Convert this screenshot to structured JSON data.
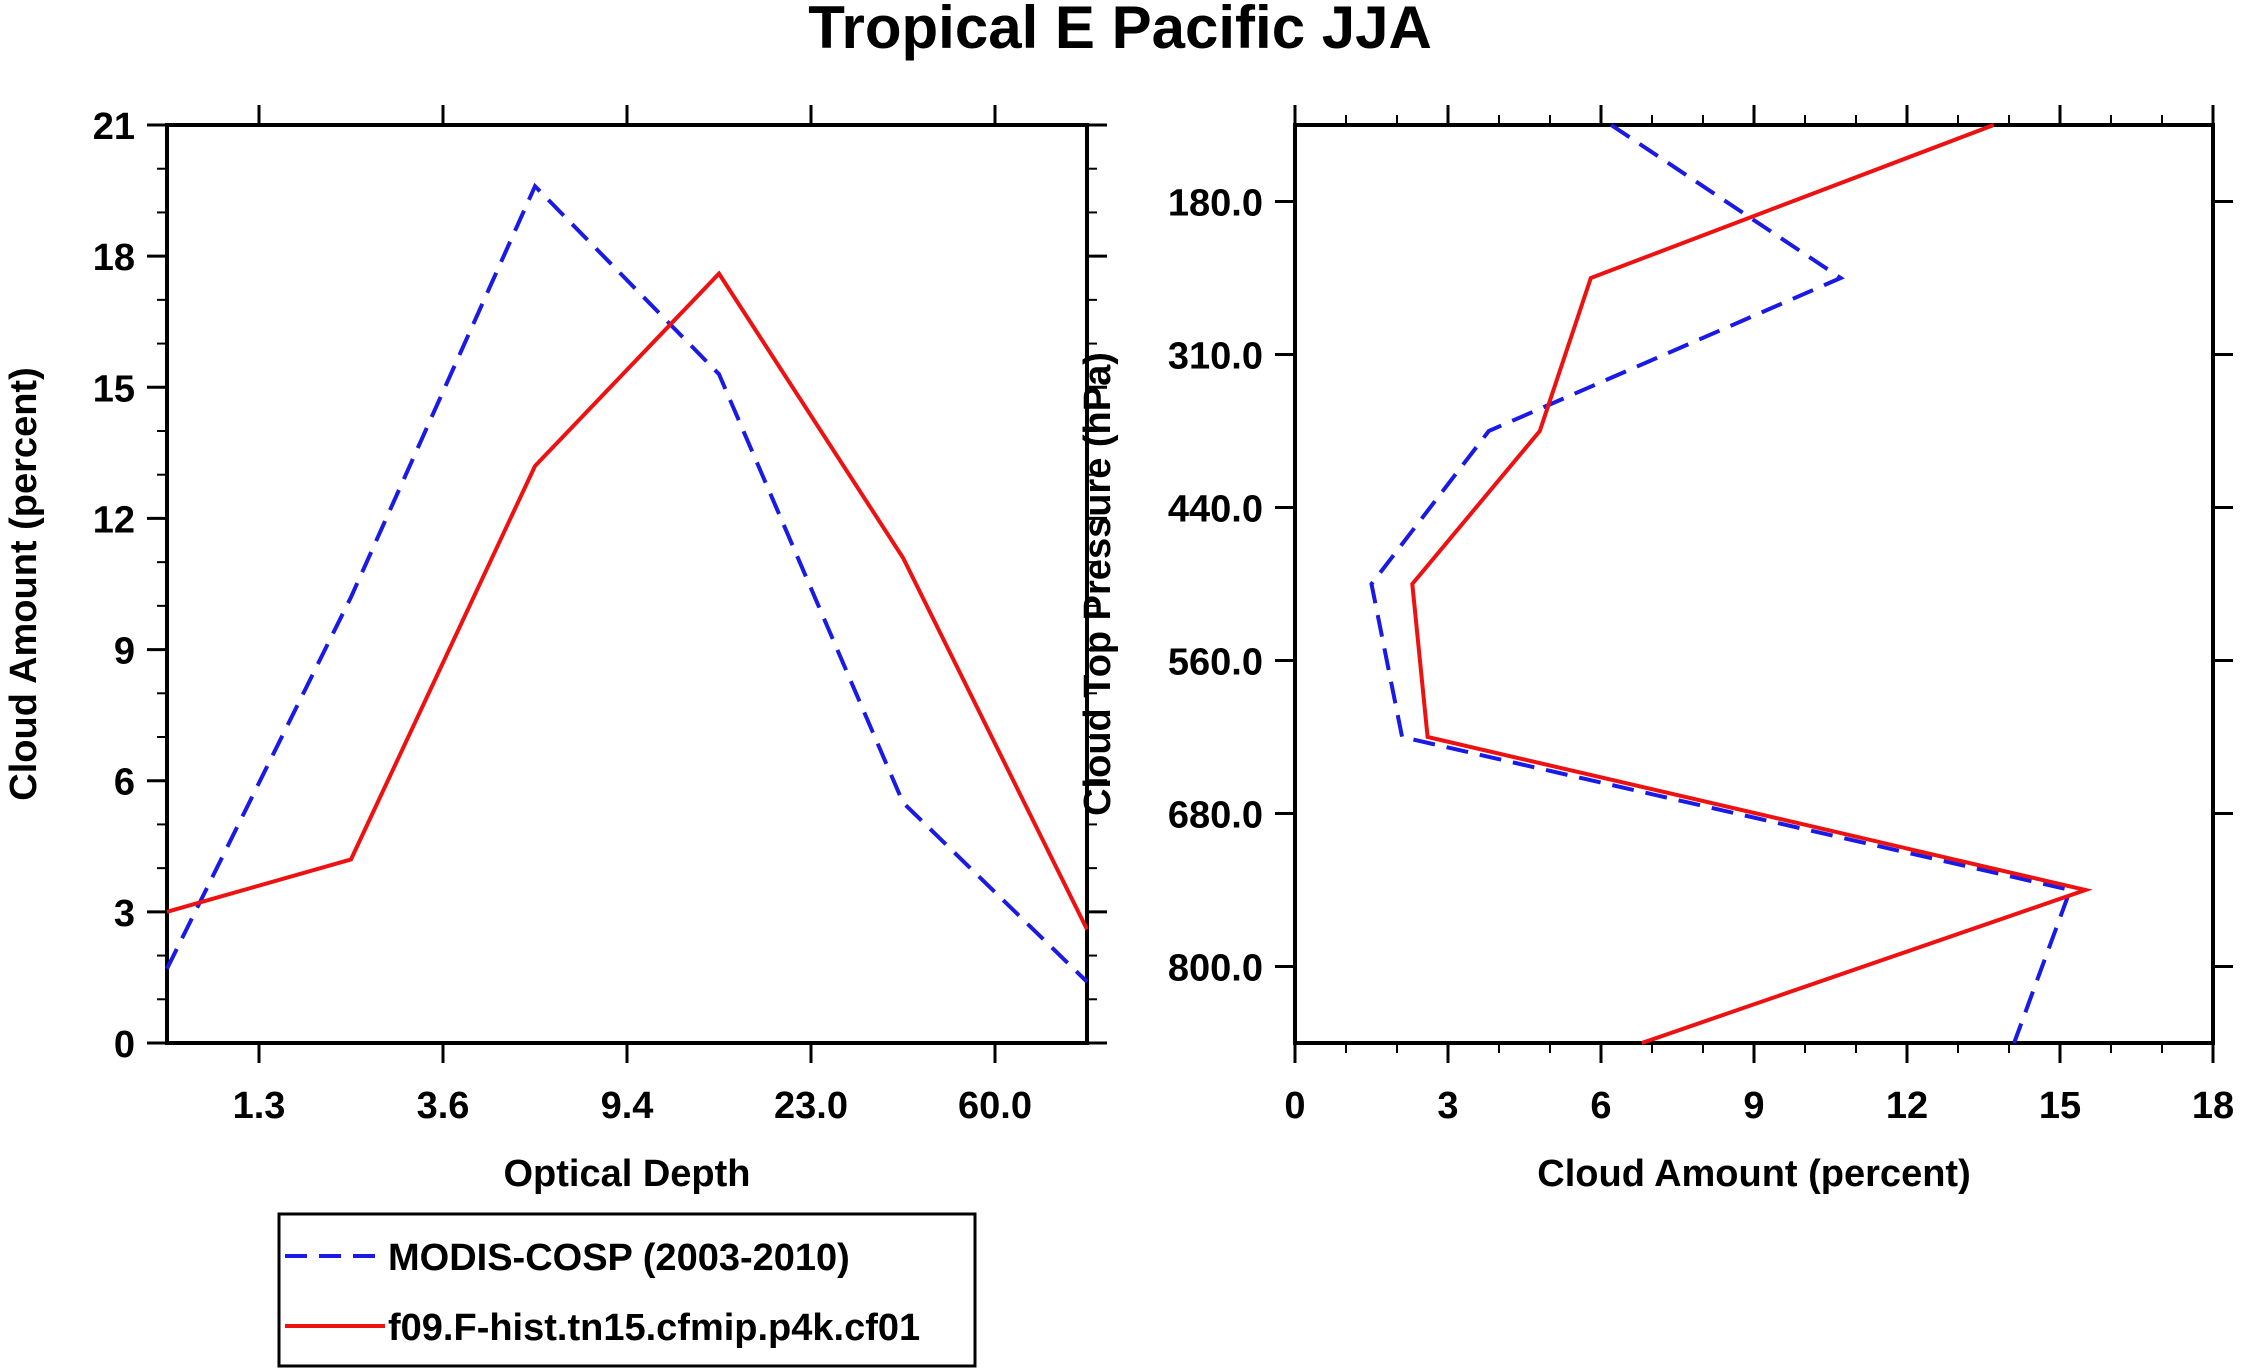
{
  "figure_title": "Tropical E Pacific JJA",
  "chart_data": [
    {
      "type": "line",
      "xlabel": "Optical Depth",
      "ylabel": "Cloud Amount (percent)",
      "ylim": [
        0,
        21
      ],
      "yticks": [
        "0",
        "3",
        "6",
        "9",
        "12",
        "15",
        "18",
        "21"
      ],
      "xticks": [
        "1.3",
        "3.6",
        "9.4",
        "23.0",
        "60.0"
      ],
      "x": [
        0,
        1,
        2,
        3,
        4,
        5
      ],
      "series": [
        {
          "name": "MODIS-COSP (2003-2010)",
          "color": "#1a1ae6",
          "dash": "dashed",
          "values": [
            1.7,
            10.2,
            19.6,
            15.3,
            5.5,
            1.4
          ]
        },
        {
          "name": "f09.F-hist.tn15.cfmip.p4k.cf01",
          "color": "#ee1111",
          "dash": "solid",
          "values": [
            3.0,
            4.2,
            13.2,
            17.6,
            11.1,
            2.6
          ]
        }
      ]
    },
    {
      "type": "line",
      "xlabel": "Cloud Amount (percent)",
      "ylabel": "Cloud Top Pressure (hPa)",
      "xlim": [
        0,
        18
      ],
      "xticks": [
        "0",
        "3",
        "6",
        "9",
        "12",
        "15",
        "18"
      ],
      "yticks": [
        "180.0",
        "310.0",
        "440.0",
        "560.0",
        "680.0",
        "800.0"
      ],
      "y": [
        0,
        1,
        2,
        3,
        4,
        5,
        6
      ],
      "series": [
        {
          "name": "MODIS-COSP (2003-2010)",
          "color": "#1a1ae6",
          "dash": "dashed",
          "values": [
            6.2,
            10.7,
            3.8,
            1.5,
            2.1,
            15.2,
            14.1
          ]
        },
        {
          "name": "f09.F-hist.tn15.cfmip.p4k.cf01",
          "color": "#ee1111",
          "dash": "solid",
          "values": [
            13.7,
            5.8,
            4.8,
            2.3,
            2.6,
            15.5,
            6.8
          ]
        }
      ]
    }
  ],
  "legend": {
    "items": [
      {
        "label": "MODIS-COSP (2003-2010)",
        "color": "#1a1ae6",
        "dash": "dashed"
      },
      {
        "label": "f09.F-hist.tn15.cfmip.p4k.cf01",
        "color": "#ee1111",
        "dash": "solid"
      }
    ]
  }
}
